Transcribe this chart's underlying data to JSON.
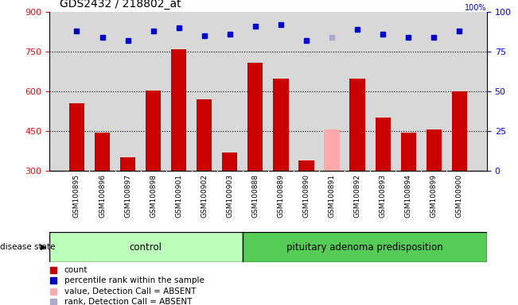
{
  "title": "GDS2432 / 218802_at",
  "samples": [
    "GSM100895",
    "GSM100896",
    "GSM100897",
    "GSM100898",
    "GSM100901",
    "GSM100902",
    "GSM100903",
    "GSM100888",
    "GSM100889",
    "GSM100890",
    "GSM100891",
    "GSM100892",
    "GSM100893",
    "GSM100894",
    "GSM100899",
    "GSM100900"
  ],
  "counts": [
    555,
    445,
    350,
    605,
    760,
    570,
    370,
    710,
    650,
    340,
    455,
    650,
    500,
    445,
    455,
    600
  ],
  "absent_flags": [
    false,
    false,
    false,
    false,
    false,
    false,
    false,
    false,
    false,
    false,
    true,
    false,
    false,
    false,
    false,
    false
  ],
  "percentile_ranks": [
    88,
    84,
    82,
    88,
    90,
    85,
    86,
    91,
    92,
    82,
    84,
    89,
    86,
    84,
    84,
    88
  ],
  "absent_rank_flags": [
    false,
    false,
    false,
    false,
    false,
    false,
    false,
    false,
    false,
    false,
    true,
    false,
    false,
    false,
    false,
    false
  ],
  "group_labels": [
    "control",
    "pituitary adenoma predisposition"
  ],
  "group_sizes": [
    7,
    9
  ],
  "group_color1": "#bbffbb",
  "group_color2": "#55cc55",
  "bar_color": "#cc0000",
  "absent_bar_color": "#ffaaaa",
  "rank_color": "#0000cc",
  "absent_rank_color": "#aaaacc",
  "ylim_left": [
    300,
    900
  ],
  "ylim_right": [
    0,
    100
  ],
  "yticks_left": [
    300,
    450,
    600,
    750,
    900
  ],
  "yticks_right": [
    0,
    25,
    50,
    75,
    100
  ],
  "grid_values": [
    450,
    600,
    750
  ],
  "legend_items": [
    {
      "label": "count",
      "color": "#cc0000"
    },
    {
      "label": "percentile rank within the sample",
      "color": "#0000cc"
    },
    {
      "label": "value, Detection Call = ABSENT",
      "color": "#ffaaaa"
    },
    {
      "label": "rank, Detection Call = ABSENT",
      "color": "#aaaacc"
    }
  ],
  "disease_state_label": "disease state",
  "bar_width": 0.6,
  "plot_bg": "#d8d8d8",
  "tick_label_bg": "#c8c8c8"
}
